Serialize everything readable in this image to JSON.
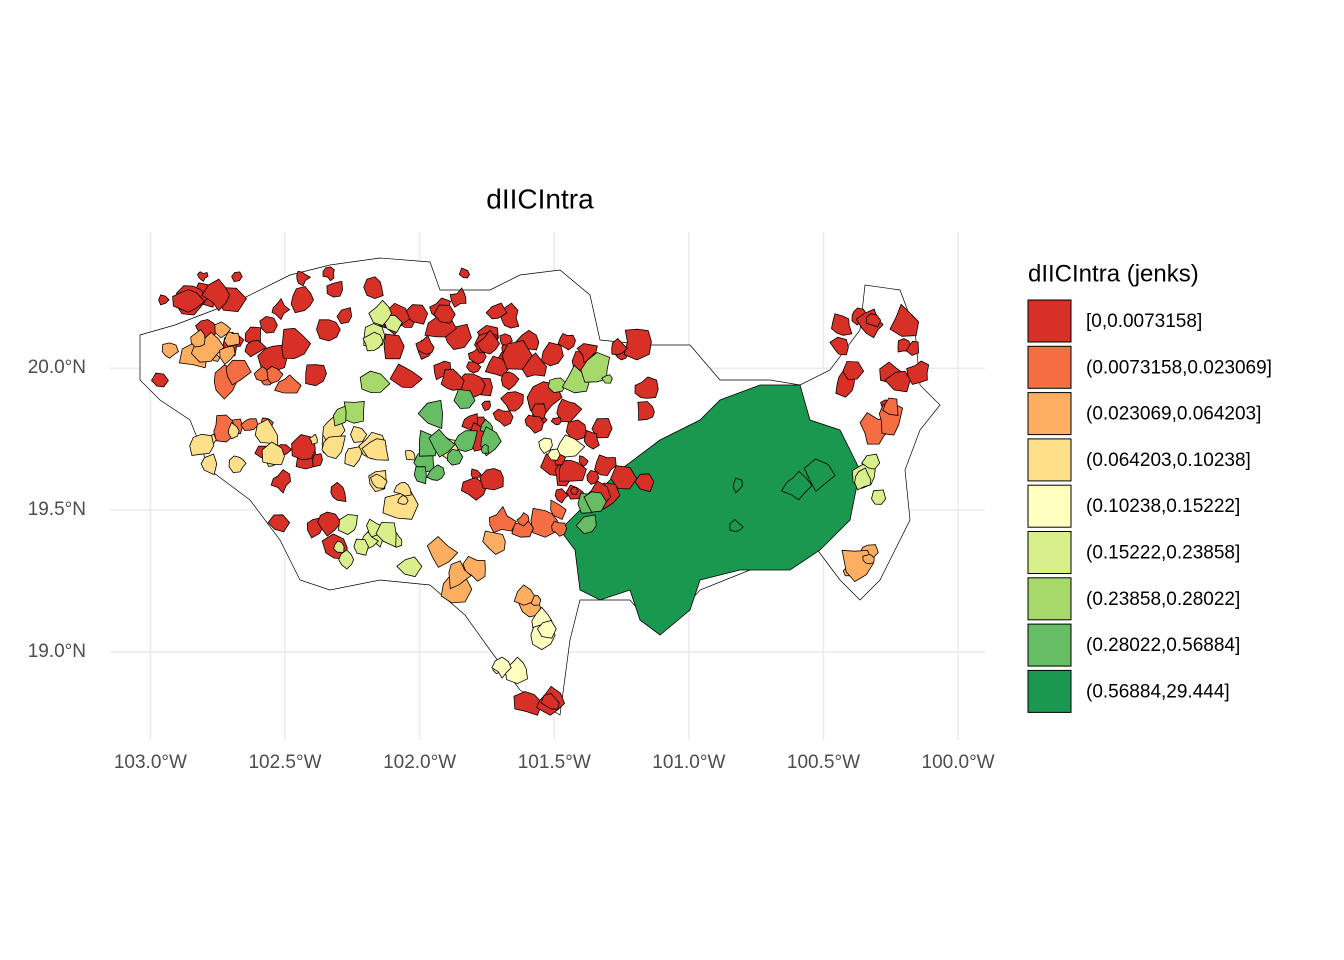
{
  "map": {
    "title": "dIICIntra",
    "xlim": [
      -103.15,
      -99.9
    ],
    "ylim": [
      18.69,
      20.48
    ],
    "xticks": [
      {
        "value": -103.0,
        "label": "103.0°W"
      },
      {
        "value": -102.5,
        "label": "102.5°W"
      },
      {
        "value": -102.0,
        "label": "102.0°W"
      },
      {
        "value": -101.5,
        "label": "101.5°W"
      },
      {
        "value": -101.0,
        "label": "101.0°W"
      },
      {
        "value": -100.5,
        "label": "100.5°W"
      },
      {
        "value": -100.0,
        "label": "100.0°W"
      }
    ],
    "yticks": [
      {
        "value": 19.0,
        "label": "19.0°N"
      },
      {
        "value": 19.5,
        "label": "19.5°N"
      },
      {
        "value": 20.0,
        "label": "20.0°N"
      }
    ],
    "grid": true,
    "legend": {
      "title": "dIICIntra (jenks)",
      "position": "right",
      "items": [
        {
          "label": "[0,0.0073158]",
          "color": "#d73027"
        },
        {
          "label": "(0.0073158,0.023069]",
          "color": "#f46d43"
        },
        {
          "label": "(0.023069,0.064203]",
          "color": "#fdae61"
        },
        {
          "label": "(0.064203,0.10238]",
          "color": "#fee08b"
        },
        {
          "label": "(0.10238,0.15222]",
          "color": "#ffffbf"
        },
        {
          "label": "(0.15222,0.23858]",
          "color": "#d9ef8b"
        },
        {
          "label": "(0.23858,0.28022]",
          "color": "#a6d96a"
        },
        {
          "label": "(0.28022,0.56884]",
          "color": "#66bd63"
        },
        {
          "label": "(0.56884,29.444]",
          "color": "#1a9850"
        }
      ]
    }
  }
}
